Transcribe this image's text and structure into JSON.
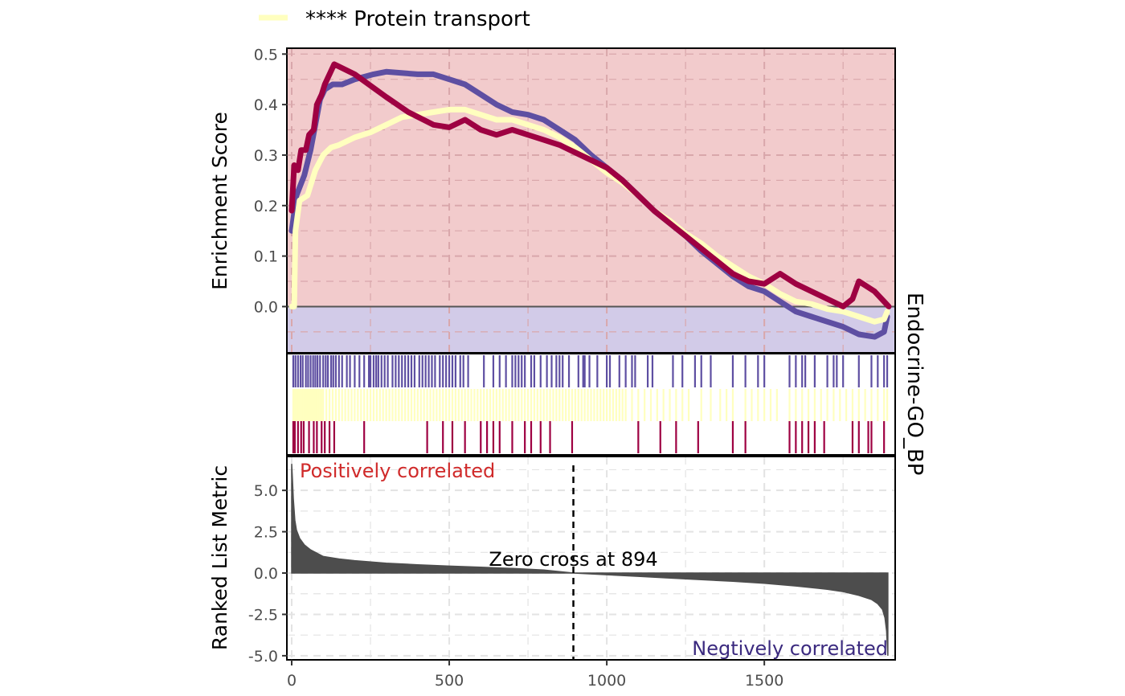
{
  "chart_data": {
    "type": "line",
    "legend": {
      "placement": "top",
      "entries": [
        {
          "label": "**** Protein transport",
          "color": "#FFFFBF"
        }
      ]
    },
    "strip_label": "Endocrine-GO_BP",
    "x_ticks": [
      0,
      500,
      1000,
      1500
    ],
    "xlim": [
      0,
      1900
    ],
    "enrichment_panel": {
      "ylabel": "Enrichment Score",
      "ylim": [
        -0.09,
        0.51
      ],
      "y_ticks": [
        0.0,
        0.1,
        0.2,
        0.3,
        0.4,
        0.5
      ],
      "y_tick_labels": [
        "0.0",
        "0.1",
        "0.2",
        "0.3",
        "0.4",
        "0.5"
      ],
      "background_positive": "#F2CBCC",
      "background_negative": "#D2CBE8",
      "series": [
        {
          "color": "#5E4FA2",
          "points": [
            [
              0,
              0.15
            ],
            [
              15,
              0.22
            ],
            [
              40,
              0.26
            ],
            [
              60,
              0.31
            ],
            [
              75,
              0.36
            ],
            [
              90,
              0.41
            ],
            [
              105,
              0.43
            ],
            [
              130,
              0.44
            ],
            [
              160,
              0.44
            ],
            [
              200,
              0.45
            ],
            [
              260,
              0.46
            ],
            [
              300,
              0.465
            ],
            [
              400,
              0.46
            ],
            [
              450,
              0.46
            ],
            [
              500,
              0.45
            ],
            [
              550,
              0.44
            ],
            [
              600,
              0.42
            ],
            [
              650,
              0.4
            ],
            [
              700,
              0.385
            ],
            [
              750,
              0.38
            ],
            [
              800,
              0.37
            ],
            [
              850,
              0.35
            ],
            [
              900,
              0.33
            ],
            [
              950,
              0.3
            ],
            [
              1000,
              0.275
            ],
            [
              1050,
              0.25
            ],
            [
              1100,
              0.22
            ],
            [
              1150,
              0.19
            ],
            [
              1200,
              0.165
            ],
            [
              1250,
              0.14
            ],
            [
              1300,
              0.11
            ],
            [
              1350,
              0.085
            ],
            [
              1400,
              0.06
            ],
            [
              1450,
              0.04
            ],
            [
              1500,
              0.03
            ],
            [
              1550,
              0.01
            ],
            [
              1600,
              -0.01
            ],
            [
              1650,
              -0.02
            ],
            [
              1700,
              -0.03
            ],
            [
              1750,
              -0.04
            ],
            [
              1800,
              -0.055
            ],
            [
              1850,
              -0.06
            ],
            [
              1880,
              -0.05
            ],
            [
              1890,
              -0.02
            ]
          ]
        },
        {
          "color": "#FFFFBF",
          "points": [
            [
              0,
              0.0
            ],
            [
              8,
              0.0
            ],
            [
              12,
              0.15
            ],
            [
              25,
              0.21
            ],
            [
              50,
              0.22
            ],
            [
              75,
              0.27
            ],
            [
              100,
              0.3
            ],
            [
              125,
              0.315
            ],
            [
              150,
              0.32
            ],
            [
              200,
              0.335
            ],
            [
              250,
              0.345
            ],
            [
              300,
              0.36
            ],
            [
              350,
              0.375
            ],
            [
              400,
              0.38
            ],
            [
              450,
              0.385
            ],
            [
              500,
              0.39
            ],
            [
              550,
              0.39
            ],
            [
              600,
              0.38
            ],
            [
              650,
              0.37
            ],
            [
              700,
              0.37
            ],
            [
              750,
              0.36
            ],
            [
              800,
              0.35
            ],
            [
              850,
              0.335
            ],
            [
              900,
              0.315
            ],
            [
              950,
              0.29
            ],
            [
              1000,
              0.265
            ],
            [
              1050,
              0.245
            ],
            [
              1100,
              0.22
            ],
            [
              1150,
              0.19
            ],
            [
              1200,
              0.17
            ],
            [
              1250,
              0.145
            ],
            [
              1300,
              0.125
            ],
            [
              1350,
              0.1
            ],
            [
              1400,
              0.08
            ],
            [
              1450,
              0.06
            ],
            [
              1500,
              0.045
            ],
            [
              1550,
              0.025
            ],
            [
              1600,
              0.01
            ],
            [
              1650,
              0.005
            ],
            [
              1700,
              -0.005
            ],
            [
              1750,
              -0.01
            ],
            [
              1800,
              -0.02
            ],
            [
              1850,
              -0.03
            ],
            [
              1880,
              -0.025
            ],
            [
              1890,
              -0.01
            ]
          ]
        },
        {
          "color": "#9E0142",
          "points": [
            [
              0,
              0.19
            ],
            [
              8,
              0.28
            ],
            [
              20,
              0.27
            ],
            [
              30,
              0.31
            ],
            [
              45,
              0.31
            ],
            [
              55,
              0.34
            ],
            [
              70,
              0.35
            ],
            [
              80,
              0.4
            ],
            [
              95,
              0.42
            ],
            [
              105,
              0.44
            ],
            [
              120,
              0.46
            ],
            [
              135,
              0.48
            ],
            [
              200,
              0.46
            ],
            [
              300,
              0.415
            ],
            [
              370,
              0.385
            ],
            [
              450,
              0.36
            ],
            [
              500,
              0.355
            ],
            [
              550,
              0.37
            ],
            [
              600,
              0.35
            ],
            [
              650,
              0.34
            ],
            [
              700,
              0.35
            ],
            [
              750,
              0.34
            ],
            [
              800,
              0.33
            ],
            [
              850,
              0.32
            ],
            [
              900,
              0.305
            ],
            [
              950,
              0.29
            ],
            [
              1000,
              0.275
            ],
            [
              1050,
              0.25
            ],
            [
              1100,
              0.22
            ],
            [
              1150,
              0.19
            ],
            [
              1200,
              0.165
            ],
            [
              1250,
              0.14
            ],
            [
              1300,
              0.115
            ],
            [
              1350,
              0.09
            ],
            [
              1400,
              0.065
            ],
            [
              1450,
              0.05
            ],
            [
              1500,
              0.045
            ],
            [
              1550,
              0.065
            ],
            [
              1600,
              0.045
            ],
            [
              1650,
              0.03
            ],
            [
              1700,
              0.015
            ],
            [
              1750,
              0.0
            ],
            [
              1780,
              0.015
            ],
            [
              1800,
              0.05
            ],
            [
              1850,
              0.03
            ],
            [
              1880,
              0.01
            ],
            [
              1895,
              0.0
            ]
          ]
        }
      ]
    },
    "hits_panel": {
      "rows": [
        {
          "color": "#5E4FA2",
          "positions": [
            5,
            12,
            20,
            28,
            35,
            45,
            52,
            60,
            68,
            75,
            82,
            90,
            100,
            108,
            115,
            125,
            132,
            140,
            150,
            160,
            175,
            185,
            200,
            215,
            230,
            245,
            250,
            260,
            268,
            275,
            285,
            295,
            305,
            320,
            330,
            340,
            350,
            360,
            370,
            380,
            390,
            405,
            415,
            425,
            435,
            445,
            455,
            470,
            480,
            490,
            500,
            510,
            520,
            535,
            545,
            560,
            610,
            640,
            660,
            680,
            700,
            710,
            720,
            730,
            740,
            760,
            770,
            790,
            810,
            825,
            840,
            850,
            860,
            880,
            910,
            925,
            930,
            945,
            970,
            1000,
            1010,
            1040,
            1060,
            1080,
            1090,
            1130,
            1145,
            1210,
            1240,
            1280,
            1300,
            1330,
            1400,
            1440,
            1480,
            1500,
            1580,
            1600,
            1620,
            1630,
            1660,
            1700,
            1720,
            1730,
            1750,
            1800,
            1840,
            1860,
            1880,
            1890
          ]
        },
        {
          "color": "#FFFFBF",
          "positions": [
            5,
            10,
            15,
            20,
            25,
            30,
            35,
            40,
            45,
            50,
            55,
            60,
            65,
            70,
            75,
            80,
            85,
            90,
            95,
            100,
            110,
            120,
            130,
            140,
            150,
            160,
            170,
            180,
            190,
            200,
            210,
            220,
            230,
            240,
            250,
            260,
            270,
            280,
            290,
            300,
            310,
            320,
            330,
            340,
            350,
            360,
            370,
            380,
            390,
            400,
            410,
            420,
            430,
            440,
            450,
            460,
            470,
            480,
            490,
            500,
            510,
            520,
            530,
            540,
            550,
            560,
            570,
            580,
            590,
            600,
            610,
            620,
            630,
            640,
            650,
            660,
            670,
            680,
            690,
            700,
            710,
            720,
            730,
            740,
            750,
            760,
            770,
            780,
            790,
            800,
            810,
            820,
            830,
            840,
            850,
            860,
            870,
            880,
            890,
            900,
            910,
            920,
            930,
            940,
            950,
            960,
            970,
            980,
            990,
            1000,
            1010,
            1020,
            1030,
            1040,
            1050,
            1060,
            1080,
            1100,
            1120,
            1140,
            1160,
            1180,
            1200,
            1220,
            1240,
            1260,
            1300,
            1330,
            1360,
            1380,
            1400,
            1440,
            1460,
            1480,
            1500,
            1520,
            1540,
            1580,
            1600,
            1620,
            1640,
            1660,
            1680,
            1700,
            1720,
            1740,
            1760,
            1780,
            1800,
            1820,
            1840,
            1860,
            1880,
            1890
          ]
        },
        {
          "color": "#9E0142",
          "positions": [
            5,
            10,
            20,
            30,
            38,
            55,
            70,
            80,
            95,
            105,
            120,
            135,
            230,
            430,
            480,
            510,
            550,
            600,
            620,
            640,
            660,
            700,
            740,
            760,
            790,
            820,
            890,
            1100,
            1170,
            1220,
            1290,
            1400,
            1440,
            1580,
            1600,
            1620,
            1640,
            1660,
            1690,
            1780,
            1800,
            1830,
            1840,
            1880
          ]
        }
      ]
    },
    "ranked_panel": {
      "ylabel": "Ranked List Metric",
      "ylim": [
        -5.2,
        7.0
      ],
      "y_ticks": [
        -5.0,
        -2.5,
        0.0,
        2.5,
        5.0
      ],
      "y_tick_labels": [
        "-5.0",
        "-2.5",
        "0.0",
        "2.5",
        "5.0"
      ],
      "fill_color": "#4D4D4D",
      "points": [
        [
          0,
          6.6
        ],
        [
          2,
          5.8
        ],
        [
          5,
          4.5
        ],
        [
          10,
          3.2
        ],
        [
          15,
          2.6
        ],
        [
          25,
          2.1
        ],
        [
          40,
          1.7
        ],
        [
          60,
          1.4
        ],
        [
          80,
          1.2
        ],
        [
          100,
          1.0
        ],
        [
          150,
          0.85
        ],
        [
          200,
          0.75
        ],
        [
          300,
          0.6
        ],
        [
          400,
          0.5
        ],
        [
          500,
          0.42
        ],
        [
          600,
          0.35
        ],
        [
          700,
          0.28
        ],
        [
          800,
          0.18
        ],
        [
          894,
          0.0
        ],
        [
          1000,
          -0.1
        ],
        [
          1100,
          -0.2
        ],
        [
          1200,
          -0.3
        ],
        [
          1300,
          -0.4
        ],
        [
          1400,
          -0.5
        ],
        [
          1500,
          -0.62
        ],
        [
          1600,
          -0.78
        ],
        [
          1700,
          -0.98
        ],
        [
          1750,
          -1.12
        ],
        [
          1800,
          -1.35
        ],
        [
          1840,
          -1.6
        ],
        [
          1860,
          -1.85
        ],
        [
          1875,
          -2.2
        ],
        [
          1883,
          -2.7
        ],
        [
          1888,
          -3.5
        ],
        [
          1892,
          -5.0
        ]
      ],
      "zero_cross": 894,
      "zero_cross_label": "Zero cross at 894",
      "positive_label": "Positively correlated",
      "negative_label": "Negtively correlated",
      "positive_color": "#D02A2A",
      "negative_color": "#3B2A7F"
    }
  }
}
